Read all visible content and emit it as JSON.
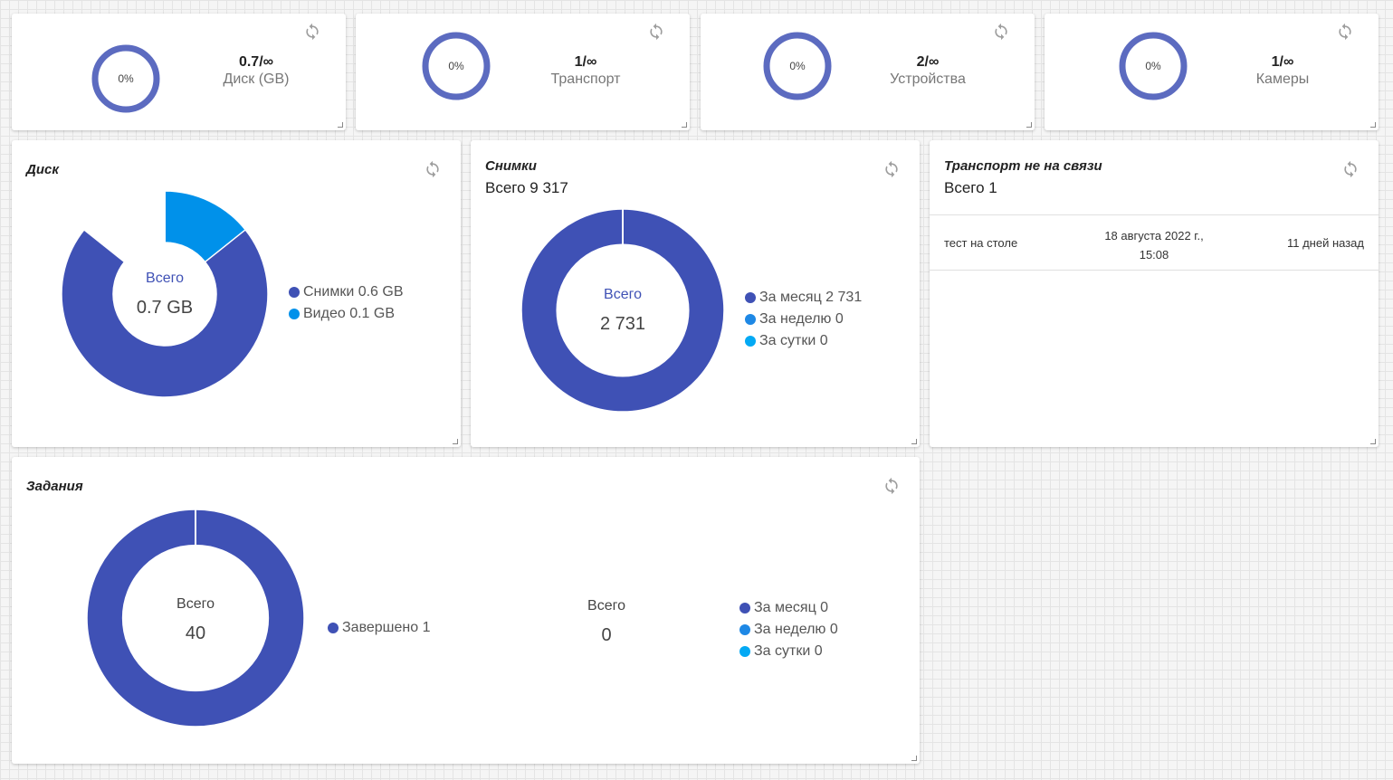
{
  "top_stats": [
    {
      "percent": "0%",
      "value": "0.7/∞",
      "label": "Диск (GB)"
    },
    {
      "percent": "0%",
      "value": "1/∞",
      "label": "Транспорт"
    },
    {
      "percent": "0%",
      "value": "2/∞",
      "label": "Устройства"
    },
    {
      "percent": "0%",
      "value": "1/∞",
      "label": "Камеры"
    }
  ],
  "disk": {
    "title": "Диск",
    "center_label": "Всего",
    "center_value": "0.7 GB",
    "legend": [
      "Снимки 0.6 GB",
      "Видео 0.1 GB"
    ]
  },
  "snapshots": {
    "title": "Снимки",
    "total": "Всего 9 317",
    "center_label": "Всего",
    "center_value": "2 731",
    "legend": [
      "За месяц 2 731",
      "За неделю 0",
      "За сутки 0"
    ]
  },
  "offline": {
    "title": "Транспорт не на связи",
    "total": "Всего 1",
    "row": {
      "name": "тест на столе",
      "date_line1": "18 августа 2022 г.,",
      "date_line2": "15:08",
      "ago": "11 дней назад"
    }
  },
  "tasks": {
    "title": "Задания",
    "center_label": "Всего",
    "center_value": "40",
    "legend": [
      "Завершено 1"
    ],
    "right_label": "Всего",
    "right_value": "0",
    "right_legend": [
      "За месяц 0",
      "За неделю 0",
      "За сутки 0"
    ]
  },
  "colors": {
    "primary": "#3f51b5",
    "light_blue": "#1e88e5",
    "cyan": "#03a9f4",
    "ring": "#5c6bc0",
    "disk_secondary": "#0091ea"
  },
  "chart_data": [
    {
      "type": "pie",
      "title": "Диск",
      "categories": [
        "Снимки",
        "Видео"
      ],
      "values": [
        0.6,
        0.1
      ]
    },
    {
      "type": "pie",
      "title": "Снимки",
      "categories": [
        "За месяц",
        "За неделю",
        "За сутки"
      ],
      "values": [
        2731,
        0,
        0
      ]
    },
    {
      "type": "pie",
      "title": "Задания",
      "categories": [
        "Завершено"
      ],
      "values": [
        1
      ]
    }
  ]
}
